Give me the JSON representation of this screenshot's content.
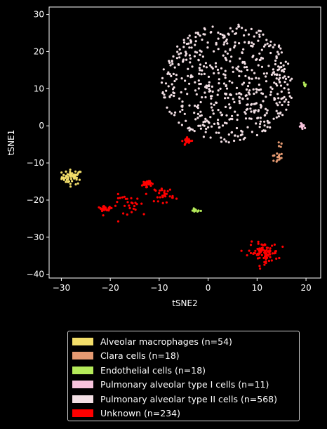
{
  "chart_data": {
    "type": "scatter",
    "xlabel": "tSNE2",
    "ylabel": "tSNE1",
    "xlim": [
      -32.5,
      23
    ],
    "ylim": [
      -41,
      32
    ],
    "xticks": [
      -30,
      -20,
      -10,
      0,
      10,
      20
    ],
    "yticks": [
      -40,
      -30,
      -20,
      -10,
      0,
      10,
      20,
      30
    ],
    "grid": false,
    "legend_position": "below",
    "series": [
      {
        "name": "Alveolar macrophages (n=54)",
        "color": "#f3de6a",
        "count": 54,
        "clusters": [
          {
            "center": [
              -27.8,
              -13.8
            ],
            "spread": [
              1.4,
              1.3
            ]
          }
        ]
      },
      {
        "name": "Clara cells (n=18)",
        "color": "#e59a72",
        "count": 18,
        "clusters": [
          {
            "center": [
              14.0,
              -8.6
            ],
            "spread": [
              0.9,
              0.9
            ]
          },
          {
            "center": [
              14.6,
              -5.0
            ],
            "spread": [
              0.3,
              0.9
            ]
          }
        ]
      },
      {
        "name": "Endothelial cells (n=18)",
        "color": "#b5eb5a",
        "count": 18,
        "clusters": [
          {
            "center": [
              -2.6,
              -22.8
            ],
            "spread": [
              0.7,
              0.3
            ]
          },
          {
            "center": [
              19.6,
              10.6
            ],
            "spread": [
              0.3,
              0.8
            ]
          }
        ]
      },
      {
        "name": "Pulmonary alveolar type I cells (n=11)",
        "color": "#f7c3dc",
        "count": 11,
        "clusters": [
          {
            "center": [
              19.4,
              -0.3
            ],
            "spread": [
              0.5,
              0.6
            ]
          }
        ]
      },
      {
        "name": "Pulmonary alveolar type II cells (n=568)",
        "color": "#f2dfe4",
        "count": 568,
        "clusters": [
          {
            "center": [
              4.0,
              11.5
            ],
            "spread": [
              6.2,
              6.2
            ]
          }
        ]
      },
      {
        "name": "Unknown (n=234)",
        "color": "#ff0000",
        "count": 234,
        "clusters": [
          {
            "center": [
              11.3,
              -34.2
            ],
            "spread": [
              2.0,
              1.8
            ]
          },
          {
            "center": [
              -15.5,
              -21.5
            ],
            "spread": [
              2.8,
              2.0
            ]
          },
          {
            "center": [
              -9.0,
              -18.5
            ],
            "spread": [
              1.3,
              1.4
            ]
          },
          {
            "center": [
              -21.0,
              -22.3
            ],
            "spread": [
              1.0,
              0.4
            ]
          },
          {
            "center": [
              -4.2,
              -4.0
            ],
            "spread": [
              0.6,
              0.5
            ]
          },
          {
            "center": [
              -12.6,
              -15.5
            ],
            "spread": [
              0.6,
              0.6
            ]
          }
        ]
      }
    ]
  }
}
